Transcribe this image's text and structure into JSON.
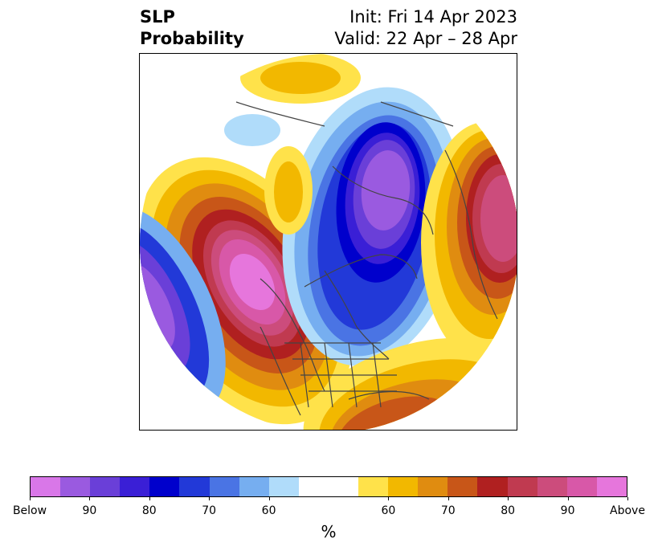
{
  "title": {
    "left_line1": "SLP",
    "left_line2": "Probability",
    "right_line1": "Init: Fri 14 Apr 2023",
    "right_line2": "Valid: 22 Apr – 28 Apr"
  },
  "colorbar": {
    "colors": [
      "#d977e8",
      "#9a5ae0",
      "#6a3fd8",
      "#3a1fd6",
      "#0000cc",
      "#2239d8",
      "#4a74e4",
      "#76aef0",
      "#b0dcfa",
      "#ffffff",
      "#ffffff",
      "#ffe24a",
      "#f2b800",
      "#e08c10",
      "#c85618",
      "#b02020",
      "#c03a50",
      "#cc4c7c",
      "#d858a8",
      "#e676dc"
    ],
    "tick_labels": [
      "Below",
      "90",
      "80",
      "70",
      "60",
      "60",
      "70",
      "80",
      "90",
      "Above"
    ],
    "units": "%"
  },
  "map": {
    "projection": "north-polar-stereographic",
    "field": "SLP probability"
  }
}
